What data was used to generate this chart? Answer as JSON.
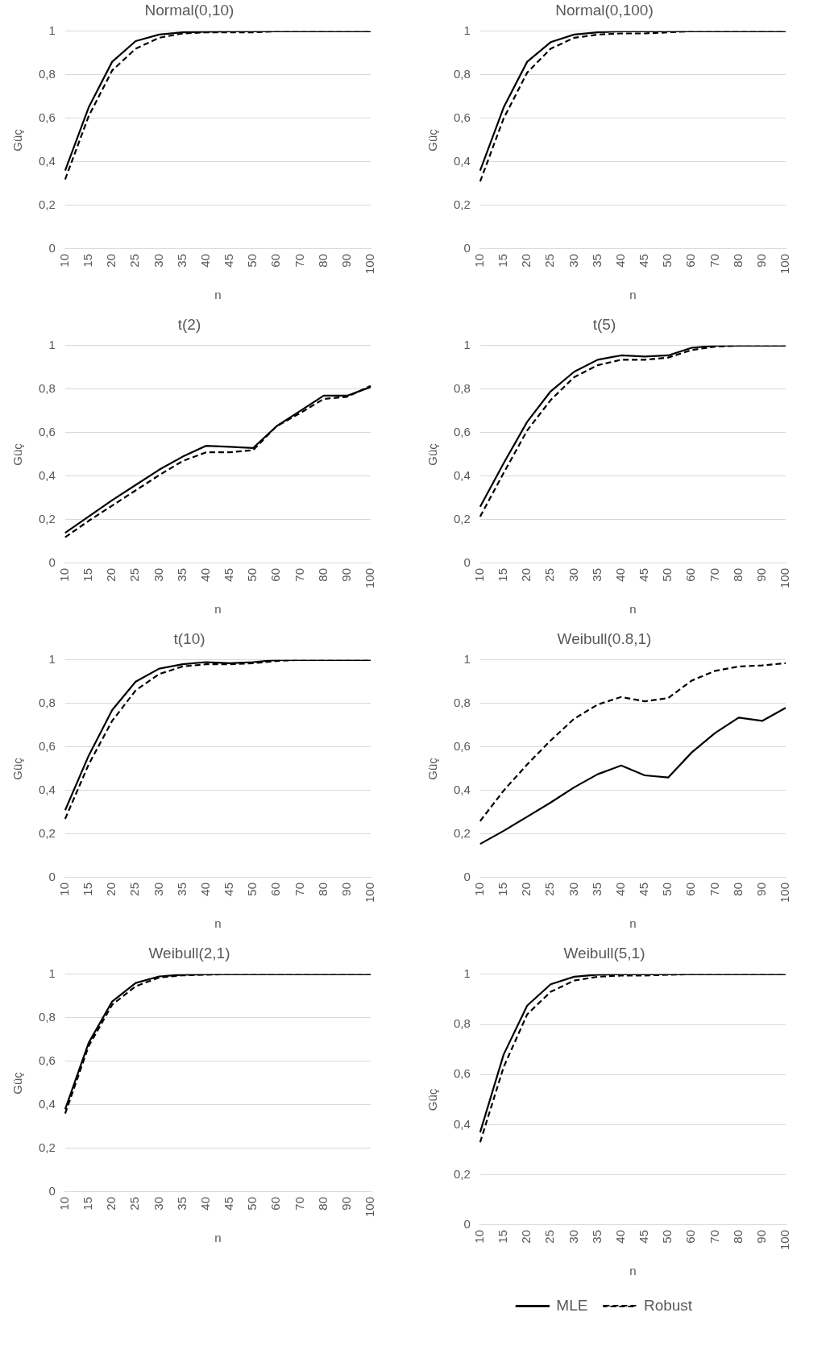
{
  "chart_data": [
    {
      "type": "line",
      "title": "Normal(0,10)",
      "xlabel": "n",
      "ylabel": "Güç",
      "categories": [
        "10",
        "15",
        "20",
        "25",
        "30",
        "35",
        "40",
        "45",
        "50",
        "60",
        "70",
        "80",
        "90",
        "100"
      ],
      "ylim": [
        0,
        1
      ],
      "yticks": [
        {
          "value": 0,
          "label": "0"
        },
        {
          "value": 0.2,
          "label": "0,2"
        },
        {
          "value": 0.4,
          "label": "0,4"
        },
        {
          "value": 0.6,
          "label": "0,6"
        },
        {
          "value": 0.8,
          "label": "0,8"
        },
        {
          "value": 1,
          "label": "1"
        }
      ],
      "grid": "y",
      "marker": "none",
      "series": [
        {
          "color": "#000000",
          "line_style": "solid",
          "values": [
            0.36,
            0.65,
            0.86,
            0.955,
            0.985,
            0.995,
            0.998,
            1,
            1,
            1,
            1,
            1,
            1,
            1
          ]
        },
        {
          "color": "#000000",
          "line_style": "dashed",
          "values": [
            0.32,
            0.61,
            0.82,
            0.92,
            0.97,
            0.99,
            0.995,
            0.995,
            0.995,
            1,
            1,
            1,
            1,
            1
          ]
        }
      ]
    },
    {
      "type": "line",
      "title": "Normal(0,100)",
      "xlabel": "n",
      "ylabel": "Güç",
      "categories": [
        "10",
        "15",
        "20",
        "25",
        "30",
        "35",
        "40",
        "45",
        "50",
        "60",
        "70",
        "80",
        "90",
        "100"
      ],
      "ylim": [
        0,
        1
      ],
      "yticks": [
        {
          "value": 0,
          "label": "0"
        },
        {
          "value": 0.2,
          "label": "0,2"
        },
        {
          "value": 0.4,
          "label": "0,4"
        },
        {
          "value": 0.6,
          "label": "0,6"
        },
        {
          "value": 0.8,
          "label": "0,8"
        },
        {
          "value": 1,
          "label": "1"
        }
      ],
      "grid": "y",
      "marker": "none",
      "series": [
        {
          "color": "#000000",
          "line_style": "solid",
          "values": [
            0.36,
            0.65,
            0.86,
            0.95,
            0.985,
            0.995,
            1,
            1,
            1,
            1,
            1,
            1,
            1,
            1
          ]
        },
        {
          "color": "#000000",
          "line_style": "dashed",
          "values": [
            0.31,
            0.6,
            0.81,
            0.92,
            0.97,
            0.985,
            0.99,
            0.99,
            0.995,
            1,
            1,
            1,
            1,
            1
          ]
        }
      ]
    },
    {
      "type": "line",
      "title": "t(2)",
      "xlabel": "n",
      "ylabel": "Güç",
      "categories": [
        "10",
        "15",
        "20",
        "25",
        "30",
        "35",
        "40",
        "45",
        "50",
        "60",
        "70",
        "80",
        "90",
        "100"
      ],
      "ylim": [
        0,
        1
      ],
      "yticks": [
        {
          "value": 0,
          "label": "0"
        },
        {
          "value": 0.2,
          "label": "0,2"
        },
        {
          "value": 0.4,
          "label": "0,4"
        },
        {
          "value": 0.6,
          "label": "0,6"
        },
        {
          "value": 0.8,
          "label": "0,8"
        },
        {
          "value": 1,
          "label": "1"
        }
      ],
      "grid": "y",
      "marker": "none",
      "series": [
        {
          "color": "#000000",
          "line_style": "solid",
          "values": [
            0.14,
            0.215,
            0.29,
            0.36,
            0.43,
            0.49,
            0.54,
            0.535,
            0.53,
            0.63,
            0.7,
            0.77,
            0.77,
            0.81
          ]
        },
        {
          "color": "#000000",
          "line_style": "dashed",
          "values": [
            0.12,
            0.195,
            0.265,
            0.335,
            0.405,
            0.47,
            0.51,
            0.51,
            0.52,
            0.63,
            0.69,
            0.755,
            0.765,
            0.815
          ]
        }
      ]
    },
    {
      "type": "line",
      "title": "t(5)",
      "xlabel": "n",
      "ylabel": "Güç",
      "categories": [
        "10",
        "15",
        "20",
        "25",
        "30",
        "35",
        "40",
        "45",
        "50",
        "60",
        "70",
        "80",
        "90",
        "100"
      ],
      "ylim": [
        0,
        1
      ],
      "yticks": [
        {
          "value": 0,
          "label": "0"
        },
        {
          "value": 0.2,
          "label": "0,2"
        },
        {
          "value": 0.4,
          "label": "0,4"
        },
        {
          "value": 0.6,
          "label": "0,6"
        },
        {
          "value": 0.8,
          "label": "0,8"
        },
        {
          "value": 1,
          "label": "1"
        }
      ],
      "grid": "y",
      "marker": "none",
      "series": [
        {
          "color": "#000000",
          "line_style": "solid",
          "values": [
            0.26,
            0.46,
            0.65,
            0.79,
            0.88,
            0.935,
            0.955,
            0.95,
            0.955,
            0.99,
            1,
            1,
            1,
            1
          ]
        },
        {
          "color": "#000000",
          "line_style": "dashed",
          "values": [
            0.215,
            0.415,
            0.61,
            0.75,
            0.855,
            0.91,
            0.935,
            0.935,
            0.945,
            0.98,
            0.995,
            1,
            1,
            1
          ]
        }
      ]
    },
    {
      "type": "line",
      "title": "t(10)",
      "xlabel": "n",
      "ylabel": "Güç",
      "categories": [
        "10",
        "15",
        "20",
        "25",
        "30",
        "35",
        "40",
        "45",
        "50",
        "60",
        "70",
        "80",
        "90",
        "100"
      ],
      "ylim": [
        0,
        1
      ],
      "yticks": [
        {
          "value": 0,
          "label": "0"
        },
        {
          "value": 0.2,
          "label": "0,2"
        },
        {
          "value": 0.4,
          "label": "0,4"
        },
        {
          "value": 0.6,
          "label": "0,6"
        },
        {
          "value": 0.8,
          "label": "0,8"
        },
        {
          "value": 1,
          "label": "1"
        }
      ],
      "grid": "y",
      "marker": "none",
      "series": [
        {
          "color": "#000000",
          "line_style": "solid",
          "values": [
            0.31,
            0.56,
            0.77,
            0.9,
            0.96,
            0.98,
            0.99,
            0.985,
            0.99,
            1,
            1,
            1,
            1,
            1
          ]
        },
        {
          "color": "#000000",
          "line_style": "dashed",
          "values": [
            0.27,
            0.52,
            0.72,
            0.86,
            0.935,
            0.97,
            0.98,
            0.98,
            0.985,
            0.995,
            1,
            1,
            1,
            1
          ]
        }
      ]
    },
    {
      "type": "line",
      "title": "Weibull(0.8,1)",
      "xlabel": "n",
      "ylabel": "Güç",
      "categories": [
        "10",
        "15",
        "20",
        "25",
        "30",
        "35",
        "40",
        "45",
        "50",
        "60",
        "70",
        "80",
        "90",
        "100"
      ],
      "ylim": [
        0,
        1
      ],
      "yticks": [
        {
          "value": 0,
          "label": "0"
        },
        {
          "value": 0.2,
          "label": "0,2"
        },
        {
          "value": 0.4,
          "label": "0,4"
        },
        {
          "value": 0.6,
          "label": "0,6"
        },
        {
          "value": 0.8,
          "label": "0,8"
        },
        {
          "value": 1,
          "label": "1"
        }
      ],
      "grid": "y",
      "marker": "none",
      "series": [
        {
          "color": "#000000",
          "line_style": "solid",
          "values": [
            0.155,
            0.215,
            0.28,
            0.345,
            0.415,
            0.475,
            0.515,
            0.47,
            0.46,
            0.575,
            0.665,
            0.735,
            0.72,
            0.78
          ]
        },
        {
          "color": "#000000",
          "line_style": "dashed",
          "values": [
            0.26,
            0.4,
            0.52,
            0.63,
            0.73,
            0.795,
            0.83,
            0.81,
            0.825,
            0.905,
            0.95,
            0.97,
            0.975,
            0.985
          ]
        }
      ]
    },
    {
      "type": "line",
      "title": "Weibull(2,1)",
      "xlabel": "n",
      "ylabel": "Güç",
      "categories": [
        "10",
        "15",
        "20",
        "25",
        "30",
        "35",
        "40",
        "45",
        "50",
        "60",
        "70",
        "80",
        "90",
        "100"
      ],
      "ylim": [
        0,
        1
      ],
      "yticks": [
        {
          "value": 0,
          "label": "0"
        },
        {
          "value": 0.2,
          "label": "0,2"
        },
        {
          "value": 0.4,
          "label": "0,4"
        },
        {
          "value": 0.6,
          "label": "0,6"
        },
        {
          "value": 0.8,
          "label": "0,8"
        },
        {
          "value": 1,
          "label": "1"
        }
      ],
      "grid": "y",
      "marker": "none",
      "series": [
        {
          "color": "#000000",
          "line_style": "solid",
          "values": [
            0.38,
            0.685,
            0.875,
            0.96,
            0.99,
            0.998,
            1,
            1,
            1,
            1,
            1,
            1,
            1,
            1
          ]
        },
        {
          "color": "#000000",
          "line_style": "dashed",
          "values": [
            0.36,
            0.67,
            0.86,
            0.945,
            0.985,
            0.995,
            0.998,
            1,
            1,
            1,
            1,
            1,
            1,
            1
          ]
        }
      ]
    },
    {
      "type": "line",
      "title": "Weibull(5,1)",
      "xlabel": "n",
      "ylabel": "Güç",
      "categories": [
        "10",
        "15",
        "20",
        "25",
        "30",
        "35",
        "40",
        "45",
        "50",
        "60",
        "70",
        "80",
        "90",
        "100"
      ],
      "ylim": [
        0,
        1
      ],
      "yticks": [
        {
          "value": 0,
          "label": "0"
        },
        {
          "value": 0.2,
          "label": "0,2"
        },
        {
          "value": 0.4,
          "label": "0,4"
        },
        {
          "value": 0.6,
          "label": "0,6"
        },
        {
          "value": 0.8,
          "label": "0,8"
        },
        {
          "value": 1,
          "label": "1"
        }
      ],
      "grid": "y",
      "marker": "none",
      "legend": "bottom",
      "series": [
        {
          "name": "MLE",
          "color": "#000000",
          "line_style": "solid",
          "values": [
            0.37,
            0.68,
            0.875,
            0.96,
            0.99,
            0.998,
            1,
            1,
            1,
            1,
            1,
            1,
            1,
            1
          ]
        },
        {
          "name": "Robust",
          "color": "#000000",
          "line_style": "dashed",
          "values": [
            0.33,
            0.63,
            0.84,
            0.93,
            0.975,
            0.99,
            0.995,
            0.995,
            0.998,
            1,
            1,
            1,
            1,
            1
          ]
        }
      ]
    }
  ]
}
